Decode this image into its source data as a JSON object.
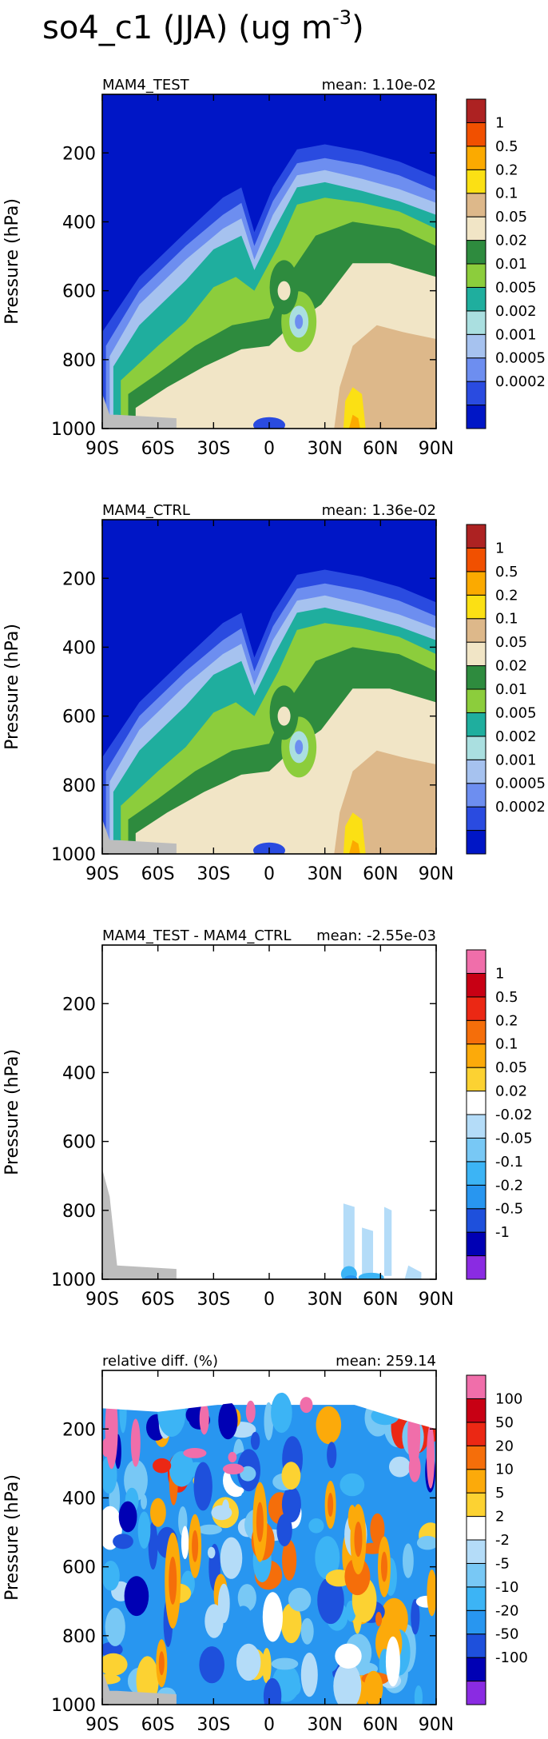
{
  "figure_title": "so4_c1 (JJA) (ug m",
  "figure_title_sup": "-3",
  "figure_title_close": ")",
  "chart_data": [
    {
      "type": "heatmap",
      "title_left": "MAM4_TEST",
      "title_right": "mean: 1.10e-02",
      "ylabel": "Pressure (hPa)",
      "xticks": [
        "90S",
        "60S",
        "30S",
        "0",
        "30N",
        "60N",
        "90N"
      ],
      "yticks": [
        "200",
        "400",
        "600",
        "800",
        "1000"
      ],
      "ylim": [
        1000,
        30
      ],
      "xlim": [
        -90,
        90
      ],
      "colorbar_labels": [
        "1",
        "0.5",
        "0.2",
        "0.1",
        "0.05",
        "0.02",
        "0.01",
        "0.005",
        "0.002",
        "0.001",
        "0.0005",
        "0.0002"
      ],
      "colors": [
        "#0016c6",
        "#2a4be0",
        "#6d8ef0",
        "#a6c2ef",
        "#aadfe0",
        "#1fae9e",
        "#8ccd3c",
        "#2e8b3e",
        "#f1e5c6",
        "#ddb88a",
        "#fbe014",
        "#fbaa00",
        "#f15000",
        "#ad2222"
      ],
      "field": "concentration by latitude and pressure"
    },
    {
      "type": "heatmap",
      "title_left": "MAM4_CTRL",
      "title_right": "mean: 1.36e-02",
      "ylabel": "Pressure (hPa)",
      "xticks": [
        "90S",
        "60S",
        "30S",
        "0",
        "30N",
        "60N",
        "90N"
      ],
      "yticks": [
        "200",
        "400",
        "600",
        "800",
        "1000"
      ],
      "ylim": [
        1000,
        30
      ],
      "xlim": [
        -90,
        90
      ],
      "colorbar_labels": [
        "1",
        "0.5",
        "0.2",
        "0.1",
        "0.05",
        "0.02",
        "0.01",
        "0.005",
        "0.002",
        "0.001",
        "0.0005",
        "0.0002"
      ],
      "colors": [
        "#0016c6",
        "#2a4be0",
        "#6d8ef0",
        "#a6c2ef",
        "#aadfe0",
        "#1fae9e",
        "#8ccd3c",
        "#2e8b3e",
        "#f1e5c6",
        "#ddb88a",
        "#fbe014",
        "#fbaa00",
        "#f15000",
        "#ad2222"
      ]
    },
    {
      "type": "heatmap",
      "title_left": "MAM4_TEST - MAM4_CTRL",
      "title_right": "mean: -2.55e-03",
      "ylabel": "Pressure (hPa)",
      "xticks": [
        "90S",
        "60S",
        "30S",
        "0",
        "30N",
        "60N",
        "90N"
      ],
      "yticks": [
        "200",
        "400",
        "600",
        "800",
        "1000"
      ],
      "ylim": [
        1000,
        30
      ],
      "xlim": [
        -90,
        90
      ],
      "colorbar_labels": [
        "1",
        "0.5",
        "0.2",
        "0.1",
        "0.05",
        "0.02",
        "-0.02",
        "-0.05",
        "-0.1",
        "-0.2",
        "-0.5",
        "-1"
      ],
      "colors": [
        "#8a2be2",
        "#0000b4",
        "#1e50dc",
        "#2896f0",
        "#3cb4f5",
        "#78c8f5",
        "#b4dcf8",
        "#ffffff",
        "#fcd232",
        "#fcaa0a",
        "#f56e0a",
        "#eb2814",
        "#c80014",
        "#f06eaa"
      ]
    },
    {
      "type": "heatmap",
      "title_left": "relative diff. (%)",
      "title_right": "mean: 259.14",
      "ylabel": "Pressure (hPa)",
      "xticks": [
        "90S",
        "60S",
        "30S",
        "0",
        "30N",
        "60N",
        "90N"
      ],
      "yticks": [
        "200",
        "400",
        "600",
        "800",
        "1000"
      ],
      "ylim": [
        1000,
        30
      ],
      "xlim": [
        -90,
        90
      ],
      "colorbar_labels": [
        "100",
        "50",
        "20",
        "10",
        "5",
        "2",
        "-2",
        "-5",
        "-10",
        "-20",
        "-50",
        "-100"
      ],
      "colors": [
        "#8a2be2",
        "#0000b4",
        "#1e50dc",
        "#2896f0",
        "#3cb4f5",
        "#78c8f5",
        "#b4dcf8",
        "#ffffff",
        "#fcd232",
        "#fcaa0a",
        "#f56e0a",
        "#eb2814",
        "#c80014",
        "#f06eaa"
      ]
    }
  ]
}
